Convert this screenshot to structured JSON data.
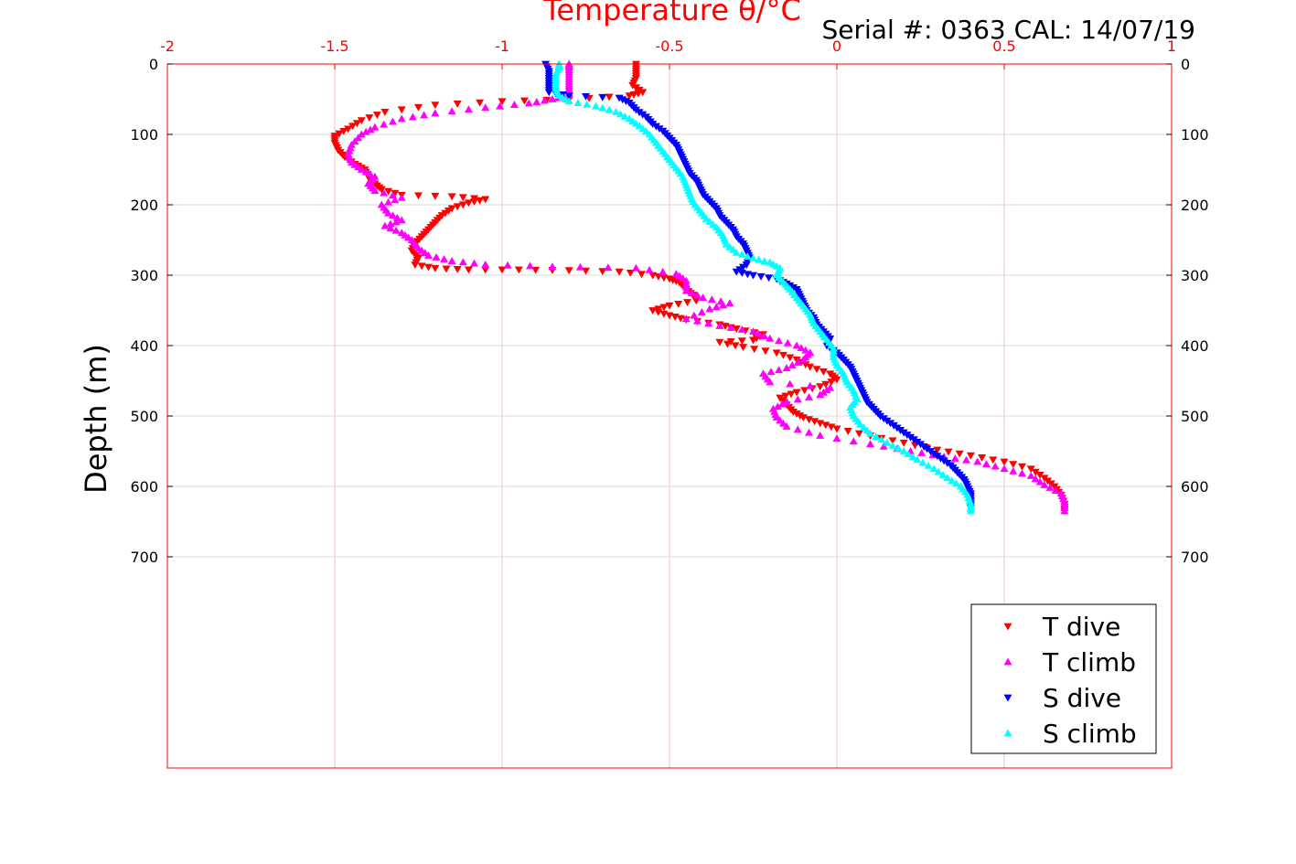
{
  "chart_data": {
    "type": "scatter",
    "title": "Temperature θ/°C",
    "subtitle": "Serial #: 0363  CAL: 14/07/19",
    "xlabel": "",
    "ylabel": "Depth (m)",
    "xlim": [
      -2,
      1
    ],
    "ylim": [
      0,
      1000
    ],
    "y_reversed": true,
    "x_axis_location": "top",
    "x_ticks": [
      -2,
      -1.5,
      -1,
      -0.5,
      0,
      0.5,
      1
    ],
    "x_tick_labels": [
      "-2",
      "-1.5",
      "-1",
      "-0.5",
      "0",
      "0.5",
      "1"
    ],
    "y_ticks": [
      0,
      100,
      200,
      300,
      400,
      500,
      600,
      700
    ],
    "y_tick_labels": [
      "0",
      "100",
      "200",
      "300",
      "400",
      "500",
      "600",
      "700"
    ],
    "grid": true,
    "legend_position": "bottom-right",
    "colors": {
      "axis": "#ff0000",
      "grid_x": "#f2c0c8",
      "grid_y": "#d9d9d9",
      "t_dive": "#ff0000",
      "t_climb": "#ff00ff",
      "s_dive": "#0000ff",
      "s_climb": "#00ffff"
    },
    "series": [
      {
        "name": "T dive",
        "marker": "triangle-down",
        "color": "#ff0000",
        "points": [
          [
            -0.6,
            0
          ],
          [
            -0.6,
            10
          ],
          [
            -0.6,
            20
          ],
          [
            -0.61,
            30
          ],
          [
            -0.58,
            40
          ],
          [
            -0.62,
            45
          ],
          [
            -0.8,
            50
          ],
          [
            -1.0,
            53
          ],
          [
            -1.2,
            58
          ],
          [
            -1.35,
            68
          ],
          [
            -1.42,
            80
          ],
          [
            -1.46,
            92
          ],
          [
            -1.5,
            102
          ],
          [
            -1.5,
            112
          ],
          [
            -1.49,
            122
          ],
          [
            -1.47,
            132
          ],
          [
            -1.44,
            142
          ],
          [
            -1.41,
            150
          ],
          [
            -1.4,
            160
          ],
          [
            -1.38,
            170
          ],
          [
            -1.36,
            178
          ],
          [
            -1.3,
            186
          ],
          [
            -1.15,
            188
          ],
          [
            -1.05,
            192
          ],
          [
            -1.1,
            197
          ],
          [
            -1.15,
            205
          ],
          [
            -1.18,
            215
          ],
          [
            -1.2,
            225
          ],
          [
            -1.22,
            235
          ],
          [
            -1.24,
            245
          ],
          [
            -1.26,
            255
          ],
          [
            -1.27,
            265
          ],
          [
            -1.25,
            275
          ],
          [
            -1.26,
            285
          ],
          [
            -1.2,
            290
          ],
          [
            -1.1,
            292
          ],
          [
            -0.95,
            292
          ],
          [
            -0.8,
            293
          ],
          [
            -0.65,
            295
          ],
          [
            -0.55,
            300
          ],
          [
            -0.5,
            305
          ],
          [
            -0.47,
            310
          ],
          [
            -0.45,
            320
          ],
          [
            -0.43,
            328
          ],
          [
            -0.42,
            336
          ],
          [
            -0.5,
            343
          ],
          [
            -0.55,
            350
          ],
          [
            -0.5,
            357
          ],
          [
            -0.45,
            363
          ],
          [
            -0.35,
            370
          ],
          [
            -0.3,
            376
          ],
          [
            -0.22,
            384
          ],
          [
            -0.25,
            392
          ],
          [
            -0.35,
            395
          ],
          [
            -0.28,
            402
          ],
          [
            -0.18,
            410
          ],
          [
            -0.12,
            420
          ],
          [
            -0.08,
            430
          ],
          [
            -0.02,
            440
          ],
          [
            0.0,
            448
          ],
          [
            -0.05,
            458
          ],
          [
            -0.12,
            466
          ],
          [
            -0.17,
            474
          ],
          [
            -0.15,
            484
          ],
          [
            -0.13,
            494
          ],
          [
            -0.1,
            502
          ],
          [
            -0.05,
            510
          ],
          [
            0.0,
            518
          ],
          [
            0.1,
            528
          ],
          [
            0.2,
            538
          ],
          [
            0.3,
            548
          ],
          [
            0.4,
            556
          ],
          [
            0.5,
            565
          ],
          [
            0.58,
            575
          ],
          [
            0.62,
            588
          ],
          [
            0.65,
            600
          ],
          [
            0.67,
            612
          ],
          [
            0.68,
            625
          ],
          [
            0.68,
            635
          ]
        ]
      },
      {
        "name": "T climb",
        "marker": "triangle-up",
        "color": "#ff00ff",
        "points": [
          [
            0.68,
            635
          ],
          [
            0.68,
            622
          ],
          [
            0.67,
            610
          ],
          [
            0.62,
            598
          ],
          [
            0.58,
            585
          ],
          [
            0.5,
            575
          ],
          [
            0.42,
            565
          ],
          [
            0.32,
            558
          ],
          [
            0.22,
            550
          ],
          [
            0.1,
            540
          ],
          [
            -0.05,
            528
          ],
          [
            -0.15,
            515
          ],
          [
            -0.18,
            502
          ],
          [
            -0.19,
            490
          ],
          [
            -0.15,
            480
          ],
          [
            -0.05,
            470
          ],
          [
            -0.02,
            460
          ],
          [
            -0.2,
            452
          ],
          [
            -0.22,
            440
          ],
          [
            -0.15,
            432
          ],
          [
            -0.1,
            420
          ],
          [
            -0.08,
            410
          ],
          [
            -0.12,
            400
          ],
          [
            -0.2,
            390
          ],
          [
            -0.25,
            380
          ],
          [
            -0.35,
            372
          ],
          [
            -0.45,
            362
          ],
          [
            -0.38,
            348
          ],
          [
            -0.32,
            340
          ],
          [
            -0.4,
            332
          ],
          [
            -0.45,
            322
          ],
          [
            -0.45,
            308
          ],
          [
            -0.48,
            298
          ],
          [
            -0.6,
            290
          ],
          [
            -0.85,
            288
          ],
          [
            -1.05,
            285
          ],
          [
            -1.15,
            280
          ],
          [
            -1.22,
            272
          ],
          [
            -1.25,
            262
          ],
          [
            -1.27,
            250
          ],
          [
            -1.3,
            240
          ],
          [
            -1.35,
            230
          ],
          [
            -1.3,
            222
          ],
          [
            -1.34,
            212
          ],
          [
            -1.36,
            200
          ],
          [
            -1.3,
            190
          ],
          [
            -1.38,
            180
          ],
          [
            -1.4,
            170
          ],
          [
            -1.38,
            160
          ],
          [
            -1.42,
            150
          ],
          [
            -1.45,
            140
          ],
          [
            -1.46,
            128
          ],
          [
            -1.45,
            115
          ],
          [
            -1.42,
            100
          ],
          [
            -1.38,
            90
          ],
          [
            -1.3,
            78
          ],
          [
            -1.2,
            70
          ],
          [
            -1.05,
            62
          ],
          [
            -0.92,
            56
          ],
          [
            -0.85,
            50
          ],
          [
            -0.8,
            45
          ],
          [
            -0.8,
            35
          ],
          [
            -0.8,
            25
          ],
          [
            -0.8,
            15
          ],
          [
            -0.8,
            5
          ],
          [
            -0.8,
            0
          ]
        ]
      },
      {
        "name": "S dive",
        "marker": "triangle-down",
        "color": "#0000ff",
        "points": [
          [
            -0.87,
            0
          ],
          [
            -0.86,
            10
          ],
          [
            -0.86,
            20
          ],
          [
            -0.86,
            30
          ],
          [
            -0.86,
            40
          ],
          [
            -0.8,
            45
          ],
          [
            -0.65,
            48
          ],
          [
            -0.62,
            55
          ],
          [
            -0.6,
            65
          ],
          [
            -0.57,
            75
          ],
          [
            -0.55,
            85
          ],
          [
            -0.52,
            95
          ],
          [
            -0.5,
            105
          ],
          [
            -0.48,
            115
          ],
          [
            -0.47,
            125
          ],
          [
            -0.46,
            135
          ],
          [
            -0.45,
            145
          ],
          [
            -0.44,
            155
          ],
          [
            -0.42,
            165
          ],
          [
            -0.41,
            175
          ],
          [
            -0.4,
            185
          ],
          [
            -0.38,
            195
          ],
          [
            -0.36,
            205
          ],
          [
            -0.35,
            215
          ],
          [
            -0.33,
            225
          ],
          [
            -0.31,
            235
          ],
          [
            -0.3,
            245
          ],
          [
            -0.28,
            255
          ],
          [
            -0.27,
            265
          ],
          [
            -0.26,
            275
          ],
          [
            -0.27,
            285
          ],
          [
            -0.3,
            295
          ],
          [
            -0.25,
            300
          ],
          [
            -0.18,
            305
          ],
          [
            -0.15,
            312
          ],
          [
            -0.12,
            320
          ],
          [
            -0.11,
            330
          ],
          [
            -0.1,
            340
          ],
          [
            -0.09,
            350
          ],
          [
            -0.07,
            360
          ],
          [
            -0.06,
            370
          ],
          [
            -0.04,
            380
          ],
          [
            -0.02,
            390
          ],
          [
            -0.03,
            400
          ],
          [
            0.0,
            410
          ],
          [
            0.02,
            420
          ],
          [
            0.04,
            430
          ],
          [
            0.05,
            440
          ],
          [
            0.06,
            450
          ],
          [
            0.07,
            460
          ],
          [
            0.08,
            470
          ],
          [
            0.09,
            480
          ],
          [
            0.11,
            490
          ],
          [
            0.13,
            500
          ],
          [
            0.16,
            510
          ],
          [
            0.19,
            520
          ],
          [
            0.22,
            530
          ],
          [
            0.25,
            540
          ],
          [
            0.28,
            550
          ],
          [
            0.31,
            560
          ],
          [
            0.34,
            570
          ],
          [
            0.36,
            580
          ],
          [
            0.38,
            590
          ],
          [
            0.39,
            600
          ],
          [
            0.4,
            610
          ],
          [
            0.4,
            620
          ],
          [
            0.4,
            630
          ]
        ]
      },
      {
        "name": "S climb",
        "marker": "triangle-up",
        "color": "#00ffff",
        "points": [
          [
            0.4,
            635
          ],
          [
            0.4,
            625
          ],
          [
            0.39,
            612
          ],
          [
            0.37,
            600
          ],
          [
            0.33,
            588
          ],
          [
            0.29,
            575
          ],
          [
            0.24,
            562
          ],
          [
            0.2,
            550
          ],
          [
            0.15,
            538
          ],
          [
            0.1,
            525
          ],
          [
            0.07,
            512
          ],
          [
            0.05,
            500
          ],
          [
            0.04,
            488
          ],
          [
            0.06,
            476
          ],
          [
            0.05,
            464
          ],
          [
            0.03,
            452
          ],
          [
            0.02,
            440
          ],
          [
            0.0,
            428
          ],
          [
            -0.01,
            416
          ],
          [
            -0.01,
            404
          ],
          [
            -0.03,
            392
          ],
          [
            -0.05,
            380
          ],
          [
            -0.07,
            368
          ],
          [
            -0.08,
            356
          ],
          [
            -0.1,
            344
          ],
          [
            -0.12,
            332
          ],
          [
            -0.14,
            320
          ],
          [
            -0.16,
            310
          ],
          [
            -0.18,
            300
          ],
          [
            -0.17,
            290
          ],
          [
            -0.2,
            282
          ],
          [
            -0.25,
            276
          ],
          [
            -0.3,
            268
          ],
          [
            -0.33,
            256
          ],
          [
            -0.34,
            244
          ],
          [
            -0.36,
            232
          ],
          [
            -0.39,
            220
          ],
          [
            -0.41,
            208
          ],
          [
            -0.43,
            196
          ],
          [
            -0.44,
            184
          ],
          [
            -0.45,
            172
          ],
          [
            -0.46,
            160
          ],
          [
            -0.48,
            148
          ],
          [
            -0.5,
            136
          ],
          [
            -0.52,
            124
          ],
          [
            -0.54,
            112
          ],
          [
            -0.56,
            100
          ],
          [
            -0.59,
            88
          ],
          [
            -0.62,
            78
          ],
          [
            -0.66,
            68
          ],
          [
            -0.72,
            60
          ],
          [
            -0.8,
            53
          ],
          [
            -0.83,
            45
          ],
          [
            -0.84,
            35
          ],
          [
            -0.84,
            25
          ],
          [
            -0.84,
            15
          ],
          [
            -0.83,
            5
          ],
          [
            -0.83,
            0
          ]
        ]
      }
    ]
  }
}
